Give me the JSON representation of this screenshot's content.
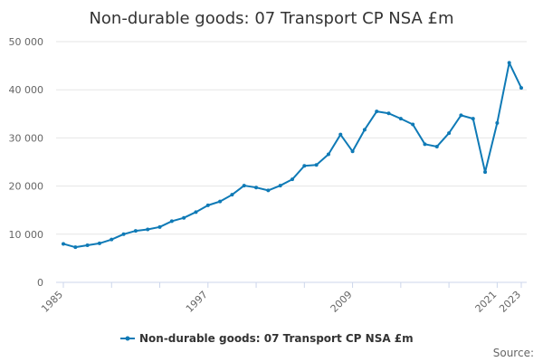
{
  "chart_data": {
    "type": "line",
    "title": "Non-durable goods: 07 Transport CP NSA £m",
    "xlabel": "",
    "ylabel": "",
    "ylim": [
      0,
      50000
    ],
    "xlim": [
      1985,
      2023
    ],
    "y_ticks": [
      0,
      10000,
      20000,
      30000,
      40000,
      50000
    ],
    "y_tick_labels": [
      "0",
      "10 000",
      "20 000",
      "30 000",
      "40 000",
      "50 000"
    ],
    "x_tick_labels": [
      "1985",
      "1997",
      "2009",
      "2021",
      "2023"
    ],
    "grid": "horizontal",
    "legend_position": "bottom",
    "source_label": "Source:",
    "series": [
      {
        "name": "Non-durable goods: 07 Transport CP NSA £m",
        "color": "#0f7ab6",
        "x": [
          1985,
          1986,
          1987,
          1988,
          1989,
          1990,
          1991,
          1992,
          1993,
          1994,
          1995,
          1996,
          1997,
          1998,
          1999,
          2000,
          2001,
          2002,
          2003,
          2004,
          2005,
          2006,
          2007,
          2008,
          2009,
          2010,
          2011,
          2012,
          2013,
          2014,
          2015,
          2016,
          2017,
          2018,
          2019,
          2020,
          2021,
          2022,
          2023
        ],
        "values": [
          8000,
          7300,
          7700,
          8100,
          8900,
          10000,
          10700,
          11000,
          11500,
          12700,
          13400,
          14600,
          16000,
          16800,
          18200,
          20100,
          19700,
          19100,
          20100,
          21400,
          24200,
          24400,
          26600,
          30700,
          27200,
          31700,
          35500,
          35100,
          34000,
          32800,
          28700,
          28200,
          31000,
          34700,
          34000,
          22900,
          33100,
          45600,
          40400
        ]
      }
    ]
  }
}
